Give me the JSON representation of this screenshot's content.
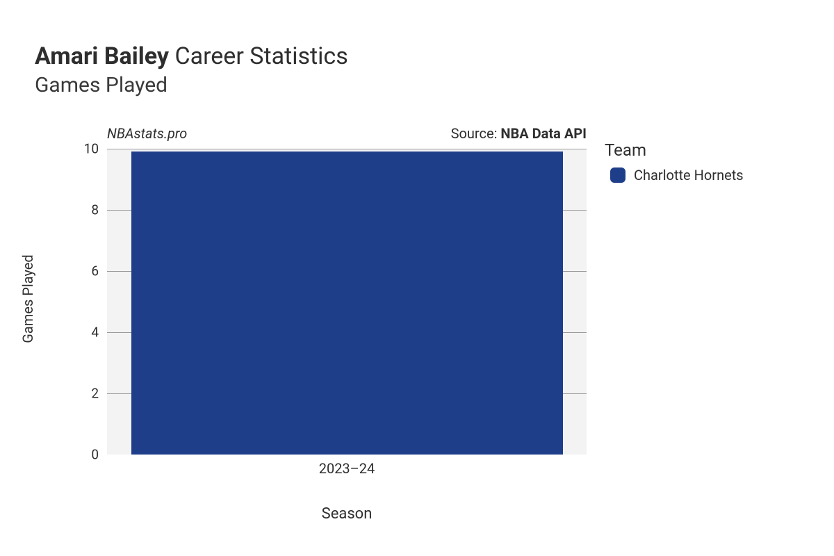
{
  "title": {
    "player_name": "Amari Bailey",
    "line1_suffix": " Career Statistics",
    "line2": "Games Played"
  },
  "attribution": {
    "site": "NBAstats.pro",
    "source_prefix": "Source: ",
    "source_name": "NBA Data API"
  },
  "chart": {
    "type": "bar",
    "x_label": "Season",
    "y_label": "Games Played",
    "background_color": "#f3f3f3",
    "grid_color": "#9a9a9a",
    "y": {
      "min": 0,
      "max": 10,
      "ticks": [
        0,
        2,
        4,
        6,
        8,
        10
      ],
      "tick_fontsize": 19
    },
    "x": {
      "categories": [
        "2023–24"
      ],
      "tick_fontsize": 20
    },
    "bars": [
      {
        "category": "2023–24",
        "value": 9.9,
        "color": "#1f3e8a",
        "width_frac": 0.9
      }
    ],
    "label_fontsize": 20
  },
  "legend": {
    "title": "Team",
    "items": [
      {
        "label": "Charlotte Hornets",
        "color": "#1f3e8a"
      }
    ],
    "title_fontsize": 24,
    "item_fontsize": 20
  }
}
